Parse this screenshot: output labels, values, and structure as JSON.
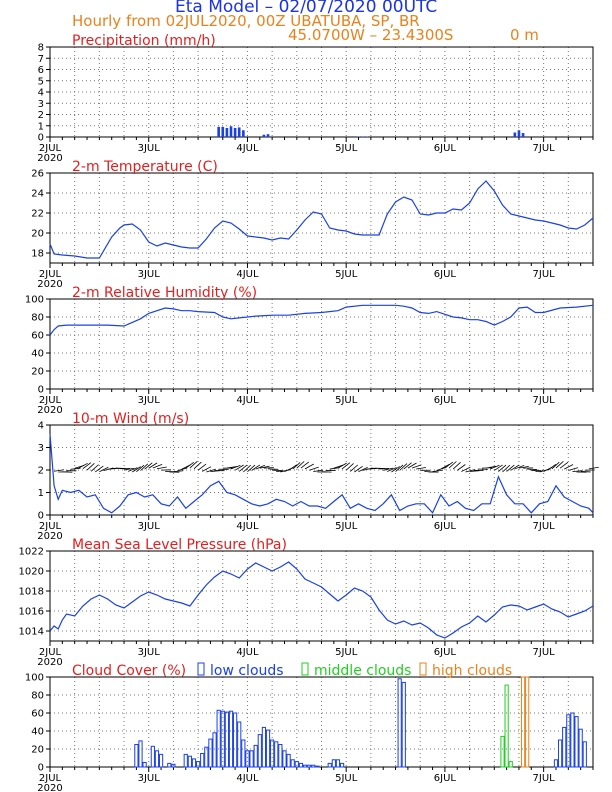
{
  "header": {
    "title": "Eta Model – 02/07/2020 00UTC",
    "subtitle": "Hourly from 02JUL2020, 00Z   UBATUBA, SP, BR",
    "coords": "45.0700W – 23.4300S",
    "elevation": "0   m"
  },
  "colors": {
    "line": "#1a40e8",
    "title": "#e02020",
    "low": "#1a40e8",
    "mid": "#1fd01f",
    "high": "#e8821c",
    "header": "#e8821c"
  },
  "x_axis": {
    "labels": [
      "2JUL",
      "3JUL",
      "4JUL",
      "5JUL",
      "6JUL",
      "7JUL"
    ],
    "year": "2020",
    "hours_total": 132
  },
  "chart_data": [
    {
      "id": "precip",
      "type": "bar",
      "title": "Precipitation (mm/h)",
      "ylim": [
        0,
        8
      ],
      "yticks": [
        0,
        1,
        2,
        3,
        4,
        5,
        6,
        7,
        8
      ],
      "x_hours": [
        41,
        42,
        43,
        44,
        45,
        46,
        47,
        52,
        53,
        75,
        76,
        77,
        113,
        114,
        115
      ],
      "values": [
        0.9,
        0.9,
        0.8,
        0.95,
        0.8,
        0.85,
        0.6,
        0.2,
        0.25,
        0.05,
        0.05,
        0.05,
        0.4,
        0.6,
        0.35
      ]
    },
    {
      "id": "temp",
      "type": "line",
      "title": "2-m Temperature (C)",
      "ylim": [
        17,
        26
      ],
      "yticks": [
        18,
        20,
        22,
        24,
        26
      ],
      "x_hours": [
        0,
        1,
        3,
        6,
        9,
        12,
        15,
        17,
        18,
        20,
        22,
        24,
        26,
        28,
        30,
        32,
        34,
        36,
        38,
        40,
        42,
        44,
        46,
        48,
        50,
        52,
        54,
        56,
        58,
        60,
        62,
        64,
        66,
        68,
        70,
        72,
        74,
        76,
        78,
        80,
        82,
        84,
        86,
        88,
        90,
        92,
        94,
        96,
        98,
        100,
        102,
        104,
        106,
        108,
        110,
        112,
        114,
        116,
        118,
        120,
        122,
        124,
        126,
        128,
        130,
        132
      ],
      "values": [
        18.9,
        17.9,
        17.8,
        17.7,
        17.5,
        17.5,
        19.6,
        20.5,
        20.8,
        20.9,
        20.3,
        19.1,
        18.7,
        19.0,
        18.8,
        18.6,
        18.5,
        18.5,
        19.4,
        20.5,
        21.2,
        21.0,
        20.4,
        19.7,
        19.6,
        19.5,
        19.3,
        19.5,
        19.4,
        20.3,
        21.3,
        22.1,
        21.9,
        20.5,
        20.3,
        20.2,
        19.9,
        19.8,
        19.8,
        19.8,
        21.9,
        23.1,
        23.6,
        23.3,
        21.9,
        21.8,
        22.0,
        22.0,
        22.4,
        22.3,
        23.0,
        24.4,
        25.2,
        24.2,
        22.8,
        21.9,
        21.7,
        21.5,
        21.3,
        21.2,
        21.0,
        20.8,
        20.5,
        20.4,
        20.8,
        21.5
      ]
    },
    {
      "id": "rh",
      "type": "line",
      "title": "2-m Relative Humidity (%)",
      "ylim": [
        0,
        100
      ],
      "yticks": [
        0,
        20,
        40,
        60,
        80,
        100
      ],
      "x_hours": [
        0,
        1,
        2,
        4,
        6,
        10,
        14,
        18,
        20,
        22,
        24,
        26,
        28,
        30,
        32,
        34,
        36,
        40,
        42,
        44,
        46,
        48,
        50,
        54,
        58,
        62,
        66,
        70,
        72,
        76,
        80,
        84,
        86,
        88,
        90,
        92,
        94,
        96,
        98,
        100,
        102,
        104,
        106,
        108,
        110,
        112,
        114,
        116,
        118,
        120,
        124,
        128,
        132
      ],
      "values": [
        60,
        66,
        70,
        71,
        71,
        71,
        71,
        70,
        74,
        78,
        84,
        87,
        90,
        89,
        87,
        87,
        86,
        85,
        80,
        78,
        79,
        80,
        81,
        82,
        82,
        84,
        85,
        87,
        91,
        93,
        93,
        93,
        92,
        90,
        85,
        84,
        86,
        83,
        80,
        79,
        77,
        77,
        75,
        71,
        75,
        80,
        90,
        91,
        85,
        85,
        90,
        91,
        93
      ]
    },
    {
      "id": "wind",
      "type": "line",
      "title": "10-m Wind (m/s)",
      "ylim": [
        0,
        4
      ],
      "yticks": [
        0,
        1,
        2,
        3,
        4
      ],
      "x_hours": [
        0,
        1,
        2,
        3,
        5,
        7,
        9,
        11,
        13,
        15,
        17,
        19,
        21,
        23,
        25,
        27,
        29,
        31,
        33,
        35,
        37,
        39,
        41,
        43,
        45,
        47,
        49,
        51,
        53,
        55,
        57,
        59,
        61,
        63,
        65,
        67,
        69,
        71,
        73,
        75,
        77,
        79,
        81,
        83,
        85,
        87,
        89,
        91,
        93,
        95,
        97,
        99,
        101,
        103,
        105,
        107,
        109,
        111,
        113,
        115,
        117,
        119,
        121,
        123,
        125,
        127,
        129,
        131,
        132
      ],
      "values": [
        3.6,
        1.3,
        0.7,
        1.1,
        1.0,
        1.1,
        0.8,
        0.9,
        0.3,
        0.1,
        0.4,
        0.9,
        1.0,
        0.8,
        0.9,
        0.5,
        0.4,
        0.8,
        0.3,
        0.6,
        0.9,
        1.3,
        1.5,
        1.0,
        0.9,
        0.7,
        0.5,
        0.4,
        0.5,
        0.7,
        0.6,
        0.4,
        0.6,
        0.4,
        0.4,
        0.3,
        0.6,
        0.9,
        0.3,
        0.5,
        0.3,
        0.2,
        0.5,
        0.9,
        0.2,
        0.4,
        0.5,
        0.5,
        0.1,
        0.9,
        0.4,
        0.6,
        0.3,
        0.2,
        0.5,
        0.5,
        1.7,
        0.9,
        0.5,
        0.5,
        0.1,
        0.5,
        0.6,
        1.3,
        0.8,
        0.6,
        0.4,
        0.3,
        0.1
      ]
    },
    {
      "id": "mslp",
      "type": "line",
      "title": "Mean Sea Level Pressure (hPa)",
      "ylim": [
        1013,
        1022
      ],
      "yticks": [
        1014,
        1016,
        1018,
        1020,
        1022
      ],
      "x_hours": [
        0,
        1,
        2,
        3,
        4,
        6,
        8,
        10,
        12,
        14,
        16,
        18,
        20,
        22,
        24,
        26,
        28,
        30,
        32,
        34,
        36,
        38,
        40,
        42,
        44,
        46,
        48,
        50,
        52,
        54,
        56,
        58,
        60,
        62,
        64,
        66,
        68,
        70,
        72,
        74,
        76,
        78,
        80,
        82,
        84,
        86,
        88,
        90,
        92,
        94,
        96,
        98,
        100,
        102,
        104,
        106,
        108,
        110,
        112,
        114,
        116,
        118,
        120,
        122,
        124,
        126,
        128,
        130,
        132
      ],
      "values": [
        1014.0,
        1014.5,
        1014.2,
        1015.1,
        1015.7,
        1015.5,
        1016.5,
        1017.2,
        1017.6,
        1017.2,
        1016.6,
        1016.3,
        1016.9,
        1017.5,
        1017.9,
        1017.6,
        1017.2,
        1017.0,
        1016.8,
        1016.5,
        1017.6,
        1018.6,
        1019.4,
        1020.0,
        1019.7,
        1019.3,
        1020.2,
        1020.8,
        1020.4,
        1020.0,
        1020.4,
        1020.9,
        1020.2,
        1019.2,
        1018.8,
        1018.4,
        1017.7,
        1017.0,
        1017.6,
        1018.3,
        1018.0,
        1017.4,
        1016.1,
        1015.1,
        1014.7,
        1015.0,
        1014.6,
        1014.8,
        1014.3,
        1013.6,
        1013.3,
        1013.8,
        1014.4,
        1014.8,
        1015.5,
        1014.9,
        1015.6,
        1016.4,
        1016.6,
        1016.5,
        1016.1,
        1016.4,
        1016.7,
        1016.2,
        1015.9,
        1015.4,
        1015.7,
        1016.0,
        1016.5
      ]
    },
    {
      "id": "cloud",
      "type": "bar",
      "title": "Cloud Cover (%)",
      "legend": [
        "low clouds",
        "middle clouds",
        "high clouds"
      ],
      "ylim": [
        0,
        100
      ],
      "yticks": [
        0,
        20,
        40,
        60,
        80,
        100
      ],
      "series": [
        {
          "name": "low clouds",
          "x_hours": [
            21,
            22,
            23,
            25,
            26,
            27,
            29,
            30,
            33,
            34,
            35,
            36,
            37,
            38,
            39,
            40,
            41,
            42,
            43,
            44,
            45,
            46,
            47,
            48,
            49,
            50,
            51,
            52,
            53,
            54,
            55,
            56,
            57,
            58,
            59,
            60,
            61,
            62,
            63,
            64,
            65,
            68,
            69,
            70,
            71,
            72,
            73,
            74,
            75,
            76,
            77,
            78,
            79,
            80,
            81,
            82,
            83,
            84,
            85,
            86,
            87,
            88,
            89,
            90,
            91,
            92,
            93,
            94,
            95,
            96,
            97,
            98,
            99,
            100,
            101,
            102,
            103,
            104,
            105,
            106,
            107,
            108,
            109,
            110,
            111,
            112,
            113,
            114,
            115,
            116,
            117,
            118,
            119,
            120,
            121,
            122,
            123,
            124,
            125,
            126,
            127,
            128,
            129,
            130,
            131,
            132
          ],
          "values": [
            25,
            29,
            5,
            23,
            18,
            14,
            4,
            3,
            14,
            12,
            9,
            6,
            15,
            22,
            31,
            38,
            63,
            62,
            61,
            62,
            60,
            50,
            30,
            18,
            18,
            24,
            36,
            44,
            41,
            30,
            28,
            25,
            18,
            14,
            8,
            6,
            4,
            2,
            2,
            2,
            1,
            4,
            8,
            8,
            4,
            0,
            0,
            0,
            0,
            0,
            0,
            0,
            0,
            0,
            0,
            0,
            0,
            0,
            98,
            94,
            0,
            0,
            0,
            0,
            0,
            0,
            0,
            0,
            0,
            0,
            0,
            0,
            0,
            0,
            0,
            0,
            0,
            0,
            0,
            0,
            0,
            0,
            0,
            0,
            0,
            0,
            0,
            0,
            0,
            0,
            0,
            0,
            0,
            0,
            0,
            0,
            8,
            30,
            44,
            58,
            60,
            56,
            42,
            28,
            0,
            0
          ]
        },
        {
          "name": "middle clouds",
          "x_hours": [
            110,
            111,
            112
          ],
          "values": [
            34,
            91,
            6
          ]
        },
        {
          "name": "high clouds",
          "x_hours": [
            115,
            116
          ],
          "values": [
            100,
            100
          ]
        }
      ]
    }
  ]
}
